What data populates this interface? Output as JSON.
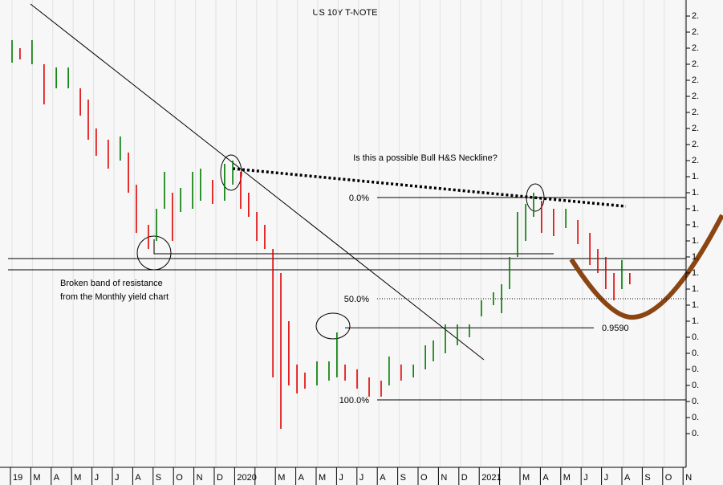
{
  "chart_data": {
    "type": "ohlc",
    "title": "US 10Y T-NOTE",
    "annotations": [
      "Is this a possible Bull H&S Neckline?",
      "Broken band  of resistance",
      "from the Monthly yield chart"
    ],
    "categories": [
      "19",
      "M",
      "A",
      "M",
      "J",
      "J",
      "A",
      "S",
      "O",
      "N",
      "D",
      "2020",
      null,
      "M",
      "A",
      "M",
      "J",
      "J",
      "A",
      "S",
      "O",
      "N",
      "D",
      "2021",
      null,
      "M",
      "A",
      "M",
      "J",
      "J",
      "A",
      "S",
      "O",
      "N"
    ],
    "x": [
      0,
      0.39,
      0.98,
      1.57,
      2.17,
      2.76,
      3.35,
      3.74,
      4.13,
      4.72,
      5.31,
      5.71,
      6.1,
      6.69,
      7.09,
      7.48,
      7.87,
      8.27,
      8.86,
      9.25,
      9.84,
      10.43,
      10.83,
      11.22,
      11.61,
      12.01,
      12.4,
      12.8,
      13.19,
      13.58,
      13.98,
      14.37,
      14.96,
      15.55,
      15.94,
      16.34,
      16.93,
      17.52,
      18.11,
      18.5,
      19.09,
      19.69,
      20.28,
      20.67,
      21.26,
      21.85,
      22.44,
      23.03,
      23.62,
      24.02,
      24.41,
      24.8,
      25.2,
      25.59,
      25.98,
      26.57,
      27.17,
      27.76,
      28.35,
      28.74,
      29.13,
      29.53,
      29.92,
      30.31
    ],
    "high": [
      2.75,
      2.7,
      2.75,
      2.6,
      2.58,
      2.58,
      2.45,
      2.38,
      2.2,
      2.13,
      2.15,
      2.05,
      1.85,
      1.6,
      1.7,
      1.93,
      1.8,
      1.83,
      1.93,
      1.95,
      1.88,
      1.98,
      2.0,
      1.93,
      1.8,
      1.68,
      1.6,
      1.45,
      1.3,
      1.0,
      0.73,
      0.68,
      0.75,
      0.75,
      0.93,
      0.73,
      0.7,
      0.65,
      0.63,
      0.78,
      0.73,
      0.73,
      0.85,
      0.88,
      0.98,
      0.98,
      0.98,
      1.13,
      1.18,
      1.23,
      1.4,
      1.68,
      1.73,
      1.8,
      1.75,
      1.7,
      1.7,
      1.63,
      1.55,
      1.45,
      1.4,
      1.3,
      1.38,
      1.3
    ],
    "low": [
      2.61,
      2.63,
      2.6,
      2.35,
      2.45,
      2.45,
      2.28,
      2.13,
      2.03,
      1.95,
      2.0,
      1.8,
      1.55,
      1.45,
      1.5,
      1.7,
      1.5,
      1.68,
      1.7,
      1.75,
      1.73,
      1.75,
      1.85,
      1.7,
      1.65,
      1.5,
      1.45,
      0.65,
      0.33,
      0.6,
      0.55,
      0.58,
      0.6,
      0.63,
      0.65,
      0.63,
      0.58,
      0.53,
      0.53,
      0.6,
      0.63,
      0.65,
      0.7,
      0.75,
      0.8,
      0.85,
      0.9,
      1.03,
      1.1,
      1.05,
      1.2,
      1.4,
      1.5,
      1.65,
      1.55,
      1.53,
      1.58,
      1.48,
      1.35,
      1.3,
      1.2,
      1.13,
      1.2,
      1.23
    ],
    "up_color": "#007a00",
    "down_color": "#e00000",
    "fib_levels": [
      {
        "value": 1.77,
        "label": "0.0%"
      },
      {
        "value": 1.14,
        "label": "50.0%"
      },
      {
        "value": 0.51,
        "label": "100.0%"
      }
    ],
    "level": {
      "value": 0.959,
      "label": "0.9590"
    },
    "ylim": [
      0.1,
      3.0
    ],
    "yticks": [
      {
        "value": 2.9,
        "label": "2."
      },
      {
        "value": 2.8,
        "label": "2."
      },
      {
        "value": 2.7,
        "label": "2."
      },
      {
        "value": 2.6,
        "label": "2."
      },
      {
        "value": 2.5,
        "label": "2."
      },
      {
        "value": 2.4,
        "label": "2."
      },
      {
        "value": 2.3,
        "label": "2."
      },
      {
        "value": 2.2,
        "label": "2."
      },
      {
        "value": 2.1,
        "label": "2."
      },
      {
        "value": 2.0,
        "label": "2."
      },
      {
        "value": 1.9,
        "label": "1."
      },
      {
        "value": 1.8,
        "label": "1."
      },
      {
        "value": 1.7,
        "label": "1."
      },
      {
        "value": 1.6,
        "label": "1."
      },
      {
        "value": 1.5,
        "label": "1."
      },
      {
        "value": 1.4,
        "label": "1."
      },
      {
        "value": 1.3,
        "label": "1."
      },
      {
        "value": 1.2,
        "label": "1."
      },
      {
        "value": 1.1,
        "label": "1."
      },
      {
        "value": 1.0,
        "label": "1."
      },
      {
        "value": 0.9,
        "label": "0."
      },
      {
        "value": 0.8,
        "label": "0."
      },
      {
        "value": 0.7,
        "label": "0."
      },
      {
        "value": 0.6,
        "label": "0."
      },
      {
        "value": 0.5,
        "label": "0."
      },
      {
        "value": 0.4,
        "label": "0."
      },
      {
        "value": 0.3,
        "label": "0."
      }
    ]
  }
}
